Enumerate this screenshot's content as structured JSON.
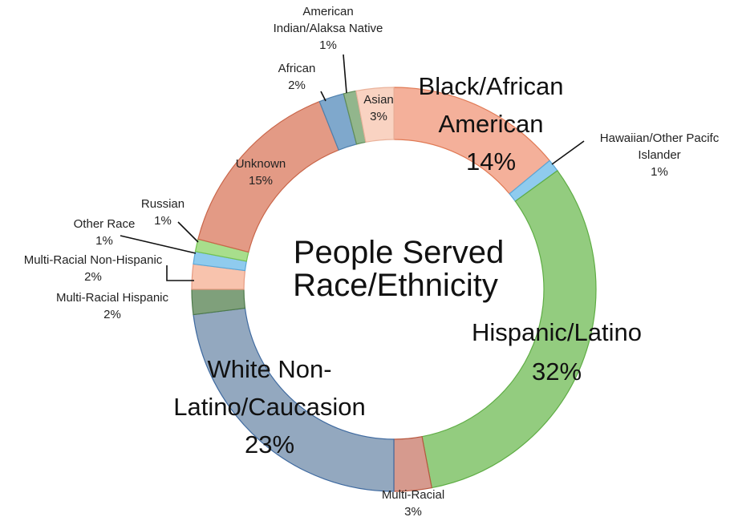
{
  "chart_data": {
    "type": "pie",
    "style": "donut",
    "title": "People Served Race/Ethnicity",
    "title_lines": [
      "People Served",
      "Race/Ethnicity"
    ],
    "start_category": "Black/African American",
    "direction": "clockwise",
    "slices": [
      {
        "category": "Black/African American",
        "value": 14,
        "label": "14%",
        "name_lines": [
          "Black/African",
          "American"
        ],
        "color": "#f4b09a",
        "edge": "#e07a55"
      },
      {
        "category": "Hawaiian/Other Pacifc Islander",
        "value": 1,
        "label": "1%",
        "name_lines": [
          "Hawaiian/Other Pacifc",
          "Islander"
        ],
        "color": "#8fcbee",
        "edge": "#5aa7d8"
      },
      {
        "category": "Hispanic/Latino",
        "value": 32,
        "label": "32%",
        "name_lines": [
          "Hispanic/Latino"
        ],
        "color": "#93cc7f",
        "edge": "#5fad45"
      },
      {
        "category": "Multi-Racial",
        "value": 3,
        "label": "3%",
        "name_lines": [
          "Multi-Racial"
        ],
        "color": "#d69a8e",
        "edge": "#b7573f"
      },
      {
        "category": "White Non-Latino/Caucasion",
        "value": 23,
        "label": "23%",
        "name_lines": [
          "White Non-",
          "Latino/Caucasion"
        ],
        "color": "#93a8bf",
        "edge": "#3f6aa0"
      },
      {
        "category": "Multi-Racial Hispanic",
        "value": 2,
        "label": "2%",
        "name_lines": [
          "Multi-Racial Hispanic"
        ],
        "color": "#7fa07b",
        "edge": "#4d7a4a"
      },
      {
        "category": "Multi-Racial Non-Hispanic",
        "value": 2,
        "label": "2%",
        "name_lines": [
          "Multi-Racial Non-Hispanic"
        ],
        "color": "#f8c3ad",
        "edge": "#e69a80"
      },
      {
        "category": "Other Race",
        "value": 1,
        "label": "1%",
        "name_lines": [
          "Other Race"
        ],
        "color": "#8fcbee",
        "edge": "#5aa7d8"
      },
      {
        "category": "Russian",
        "value": 1,
        "label": "1%",
        "name_lines": [
          "Russian"
        ],
        "color": "#a8de8c",
        "edge": "#72c24f"
      },
      {
        "category": "Unknown",
        "value": 15,
        "label": "15%",
        "name_lines": [
          "Unknown"
        ],
        "color": "#e39a85",
        "edge": "#c9664a"
      },
      {
        "category": "African",
        "value": 2,
        "label": "2%",
        "name_lines": [
          "African"
        ],
        "color": "#7fa8cc",
        "edge": "#4f80ad"
      },
      {
        "category": "American Indian/Alaksa Native",
        "value": 1,
        "label": "1%",
        "name_lines": [
          "American",
          "Indian/Alaksa Native"
        ],
        "color": "#92b68c",
        "edge": "#5f8c57"
      },
      {
        "category": "Asian",
        "value": 3,
        "label": "3%",
        "name_lines": [
          "Asian"
        ],
        "color": "#f9d3c2",
        "edge": "#eab39c"
      }
    ],
    "legend": "none"
  }
}
